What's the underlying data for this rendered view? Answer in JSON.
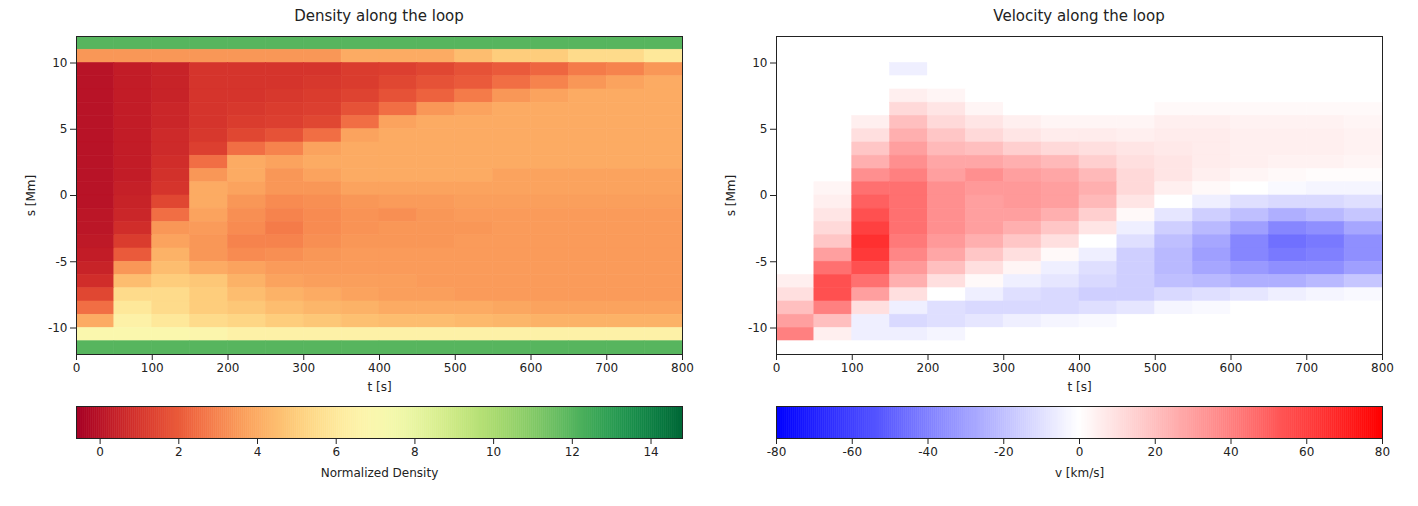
{
  "chart_data": [
    {
      "type": "heatmap",
      "title": "Density along the loop",
      "x_label": "t [s]",
      "y_label": "s [Mm]",
      "color": "RdYlGn",
      "xlim": [
        0,
        800
      ],
      "xticks": [
        0,
        100,
        200,
        300,
        400,
        500,
        600,
        700,
        800
      ],
      "ylim": [
        -12,
        12
      ],
      "yticks": [
        -10,
        -5,
        0,
        5,
        10
      ],
      "x": [
        25,
        75,
        125,
        175,
        225,
        275,
        325,
        375,
        425,
        475,
        525,
        575,
        625,
        675,
        725,
        775
      ],
      "y": [
        11.5,
        10.5,
        9.5,
        8.5,
        7.5,
        6.5,
        5.5,
        4.5,
        3.5,
        2.5,
        1.5,
        0.5,
        -0.5,
        -1.5,
        -2.5,
        -3.5,
        -4.5,
        -5.5,
        -6.5,
        -7.5,
        -8.5,
        -9.5,
        -10.5,
        -11.5
      ],
      "cells": [
        [
          12,
          12,
          12,
          12,
          12,
          12,
          12,
          12,
          12,
          12,
          12,
          12,
          12,
          12,
          12,
          12
        ],
        [
          3.5,
          3.5,
          3.5,
          3.5,
          3.5,
          3.5,
          3.5,
          4,
          4,
          4,
          4.5,
          5,
          5,
          5.5,
          5.5,
          6
        ],
        [
          0,
          0.3,
          0.5,
          1,
          1,
          1,
          1,
          1.2,
          1.3,
          1.5,
          1.8,
          2,
          2.3,
          2.8,
          3,
          3.5
        ],
        [
          0,
          0.3,
          0.5,
          1,
          1,
          1,
          1.1,
          1.2,
          1.5,
          1.8,
          2,
          2.5,
          3,
          3.5,
          3.8,
          4
        ],
        [
          0,
          0.3,
          0.5,
          1,
          1,
          1.1,
          1.2,
          1.4,
          1.8,
          2.2,
          2.8,
          3.5,
          3.8,
          4,
          4,
          4
        ],
        [
          0,
          0.3,
          0.6,
          1,
          1.1,
          1.2,
          1.3,
          1.8,
          2.5,
          3.5,
          3.8,
          4,
          4,
          4,
          4,
          4
        ],
        [
          0,
          0.3,
          0.6,
          1,
          1.2,
          1.3,
          1.5,
          2.5,
          3.8,
          4,
          4,
          4,
          4,
          4,
          4,
          4
        ],
        [
          0,
          0.3,
          0.7,
          1.1,
          1.5,
          1.8,
          2.5,
          3.8,
          4,
          4,
          4,
          4,
          4,
          4,
          4,
          4
        ],
        [
          0,
          0.3,
          0.7,
          1.3,
          2.5,
          3,
          3.8,
          4,
          4,
          4,
          4,
          4,
          4,
          4,
          4,
          4
        ],
        [
          0,
          0.3,
          0.8,
          2.5,
          4,
          3.8,
          4,
          4,
          4,
          4,
          4,
          4,
          4,
          4,
          4,
          4
        ],
        [
          0,
          0.3,
          0.9,
          3.5,
          4,
          3.5,
          3.8,
          4,
          4,
          4,
          4,
          3.8,
          3.8,
          3.8,
          3.8,
          3.8
        ],
        [
          0,
          0.4,
          1,
          4,
          3.8,
          3.5,
          3.5,
          3.8,
          3.8,
          3.8,
          3.8,
          3.8,
          3.8,
          3.8,
          3.8,
          3.8
        ],
        [
          0,
          0.5,
          1.5,
          4,
          3.5,
          3.2,
          3.3,
          3.5,
          3.6,
          3.6,
          3.7,
          3.7,
          3.7,
          3.7,
          3.7,
          3.7
        ],
        [
          0.1,
          0.6,
          2.5,
          3.8,
          3.3,
          3,
          3.2,
          3.4,
          3.3,
          3.5,
          3.6,
          3.6,
          3.6,
          3.6,
          3.6,
          3.6
        ],
        [
          0.1,
          0.8,
          3.5,
          3.6,
          3.2,
          2.8,
          3.2,
          3.4,
          3.5,
          3.5,
          3.5,
          3.6,
          3.6,
          3.6,
          3.6,
          3.6
        ],
        [
          0.2,
          1.2,
          3.8,
          3.5,
          3,
          3,
          3.3,
          3.5,
          3.5,
          3.5,
          3.6,
          3.6,
          3.6,
          3.6,
          3.6,
          3.6
        ],
        [
          0.3,
          2,
          4.2,
          3.5,
          3.2,
          3.3,
          3.5,
          3.6,
          3.6,
          3.6,
          3.6,
          3.6,
          3.6,
          3.6,
          3.6,
          3.6
        ],
        [
          0.5,
          3.5,
          4.5,
          4,
          3.8,
          3.6,
          3.6,
          3.6,
          3.6,
          3.6,
          3.6,
          3.6,
          3.6,
          3.6,
          3.6,
          3.6
        ],
        [
          0.8,
          4.5,
          5,
          4.8,
          4.2,
          3.8,
          3.7,
          3.7,
          3.7,
          3.6,
          3.6,
          3.6,
          3.6,
          3.6,
          3.6,
          3.6
        ],
        [
          1.5,
          5.5,
          5.5,
          5,
          4.5,
          4.2,
          4,
          3.8,
          3.7,
          3.7,
          3.6,
          3.6,
          3.6,
          3.6,
          3.6,
          3.6
        ],
        [
          2.5,
          6,
          5.5,
          5,
          4.8,
          4.5,
          4.3,
          4.2,
          4,
          4,
          4,
          3.9,
          3.8,
          3.8,
          3.8,
          3.8
        ],
        [
          4,
          6.5,
          6,
          5.5,
          5.3,
          5,
          4.8,
          4.6,
          4.5,
          4.5,
          4.4,
          4.3,
          4.2,
          4.2,
          4.2,
          4.2
        ],
        [
          7,
          7,
          7,
          6.8,
          6.5,
          6.5,
          6.5,
          6.5,
          6.5,
          6.5,
          6.5,
          6.5,
          6.5,
          6.5,
          6.5,
          6.5
        ],
        [
          12,
          12,
          12,
          12,
          12,
          12,
          12,
          12,
          12,
          12,
          12,
          12,
          12,
          12,
          12,
          12
        ]
      ],
      "colorbar": {
        "label": "Normalized Density",
        "range": [
          -0.6,
          14.8
        ],
        "ticks": [
          0,
          2,
          4,
          6,
          8,
          10,
          12,
          14
        ]
      }
    },
    {
      "type": "heatmap",
      "title": "Velocity along the loop",
      "x_label": "t [s]",
      "y_label": "s [Mm]",
      "color": "bwr",
      "xlim": [
        0,
        800
      ],
      "xticks": [
        0,
        100,
        200,
        300,
        400,
        500,
        600,
        700,
        800
      ],
      "ylim": [
        -12,
        12
      ],
      "yticks": [
        -10,
        -5,
        0,
        5,
        10
      ],
      "x": [
        25,
        75,
        125,
        175,
        225,
        275,
        325,
        375,
        425,
        475,
        525,
        575,
        625,
        675,
        725,
        775
      ],
      "y": [
        11.5,
        10.5,
        9.5,
        8.5,
        7.5,
        6.5,
        5.5,
        4.5,
        3.5,
        2.5,
        1.5,
        0.5,
        -0.5,
        -1.5,
        -2.5,
        -3.5,
        -4.5,
        -5.5,
        -6.5,
        -7.5,
        -8.5,
        -9.5,
        -10.5,
        -11.5
      ],
      "cells": [
        [
          0,
          0,
          0,
          0,
          0,
          0,
          0,
          0,
          0,
          0,
          0,
          0,
          0,
          0,
          0,
          0
        ],
        [
          0,
          0,
          0,
          0,
          0,
          0,
          0,
          0,
          0,
          0,
          0,
          0,
          0,
          0,
          0,
          0
        ],
        [
          0,
          0,
          0,
          -5,
          0,
          0,
          0,
          0,
          0,
          0,
          0,
          0,
          0,
          0,
          0,
          0
        ],
        [
          0,
          0,
          0,
          0,
          0,
          0,
          0,
          0,
          0,
          0,
          0,
          0,
          0,
          0,
          0,
          0
        ],
        [
          0,
          0,
          0,
          5,
          3,
          0,
          0,
          0,
          0,
          0,
          0,
          0,
          0,
          0,
          0,
          0
        ],
        [
          0,
          0,
          0,
          12,
          8,
          3,
          0,
          0,
          0,
          0,
          2,
          2,
          2,
          2,
          2,
          2
        ],
        [
          0,
          0,
          5,
          20,
          12,
          8,
          5,
          3,
          3,
          3,
          5,
          5,
          4,
          4,
          4,
          3
        ],
        [
          0,
          0,
          10,
          25,
          18,
          12,
          8,
          6,
          6,
          5,
          6,
          6,
          5,
          5,
          5,
          4
        ],
        [
          0,
          0,
          18,
          30,
          22,
          20,
          15,
          12,
          10,
          8,
          7,
          6,
          5,
          5,
          5,
          4
        ],
        [
          0,
          0,
          25,
          35,
          28,
          28,
          25,
          22,
          15,
          10,
          8,
          6,
          5,
          4,
          4,
          3
        ],
        [
          0,
          0,
          35,
          40,
          30,
          35,
          30,
          28,
          22,
          12,
          8,
          5,
          3,
          2,
          1,
          1
        ],
        [
          0,
          3,
          45,
          45,
          35,
          32,
          32,
          30,
          25,
          12,
          5,
          2,
          0,
          -2,
          -3,
          -3
        ],
        [
          0,
          5,
          50,
          45,
          35,
          30,
          32,
          30,
          22,
          8,
          0,
          -5,
          -10,
          -12,
          -12,
          -10
        ],
        [
          0,
          8,
          55,
          45,
          35,
          30,
          30,
          25,
          15,
          2,
          -8,
          -15,
          -20,
          -25,
          -22,
          -18
        ],
        [
          0,
          12,
          60,
          45,
          35,
          30,
          25,
          18,
          8,
          -5,
          -15,
          -22,
          -30,
          -38,
          -35,
          -28
        ],
        [
          0,
          18,
          65,
          42,
          32,
          25,
          18,
          10,
          0,
          -10,
          -20,
          -28,
          -38,
          -45,
          -42,
          -35
        ],
        [
          0,
          30,
          62,
          38,
          28,
          18,
          10,
          2,
          -5,
          -15,
          -22,
          -30,
          -38,
          -42,
          -40,
          -35
        ],
        [
          0,
          45,
          55,
          32,
          20,
          10,
          3,
          -5,
          -10,
          -15,
          -22,
          -28,
          -32,
          -35,
          -35,
          -30
        ],
        [
          5,
          55,
          45,
          25,
          10,
          2,
          -5,
          -8,
          -12,
          -15,
          -20,
          -22,
          -25,
          -25,
          -22,
          -18
        ],
        [
          10,
          55,
          30,
          10,
          0,
          -5,
          -10,
          -12,
          -15,
          -15,
          -12,
          -10,
          -8,
          -5,
          -3,
          -2
        ],
        [
          20,
          40,
          10,
          -5,
          -10,
          -12,
          -12,
          -12,
          -10,
          -8,
          -3,
          -2,
          0,
          0,
          0,
          0
        ],
        [
          30,
          20,
          -5,
          -12,
          -10,
          -8,
          -5,
          -3,
          -2,
          0,
          0,
          0,
          0,
          0,
          0,
          0
        ],
        [
          40,
          5,
          -5,
          -5,
          -3,
          0,
          0,
          0,
          0,
          0,
          0,
          0,
          0,
          0,
          0,
          0
        ],
        [
          0,
          0,
          0,
          0,
          0,
          0,
          0,
          0,
          0,
          0,
          0,
          0,
          0,
          0,
          0,
          0
        ]
      ],
      "colorbar": {
        "label": "v [km/s]",
        "range": [
          -80,
          80
        ],
        "ticks": [
          -80,
          -60,
          -40,
          -20,
          0,
          20,
          40,
          60,
          80
        ]
      }
    }
  ]
}
